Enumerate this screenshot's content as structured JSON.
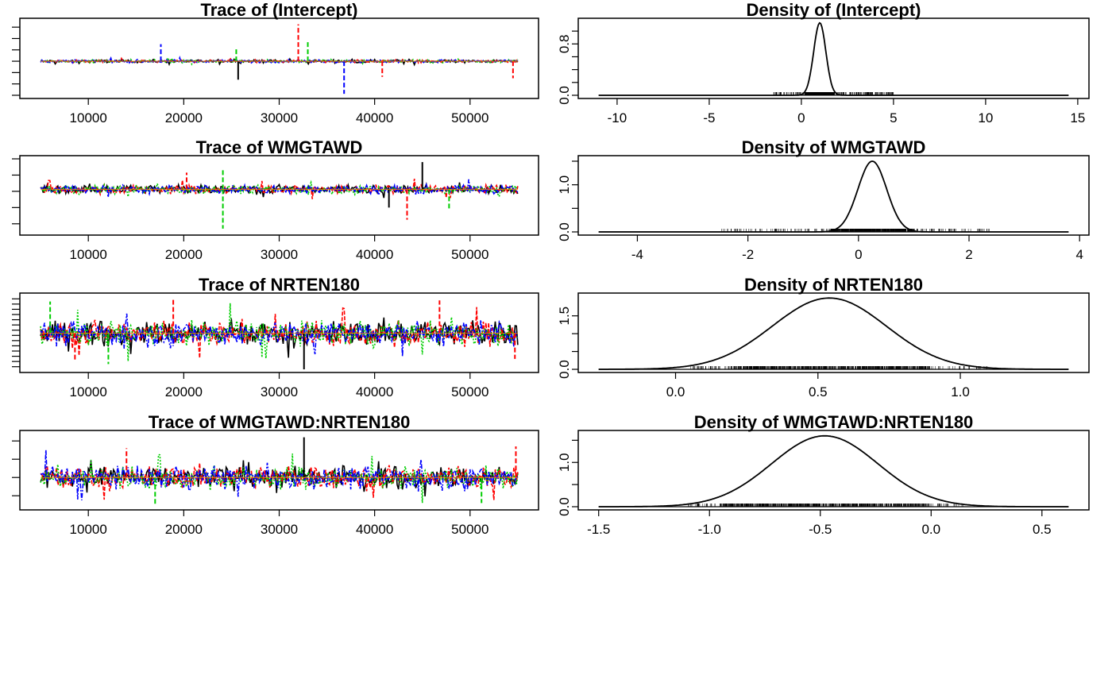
{
  "chart_data": [
    {
      "type": "line",
      "title": "Trace of (Intercept)",
      "xlabel": "",
      "ylabel": "",
      "xlim": [
        5000,
        55000
      ],
      "ylim": [
        -11,
        15
      ],
      "x_ticks": [
        10000,
        20000,
        30000,
        40000,
        50000
      ],
      "y_ticks": [
        -11,
        -7,
        -3,
        1,
        5,
        9,
        13
      ],
      "y_tick_labels_shown": false,
      "series": [
        {
          "color": "#000000",
          "center": 1.0,
          "spread": 0.45
        },
        {
          "color": "#ff0000",
          "center": 1.0,
          "spread": 0.45
        },
        {
          "color": "#00cd00",
          "center": 1.0,
          "spread": 0.45
        },
        {
          "color": "#0000ff",
          "center": 1.0,
          "spread": 0.45
        }
      ],
      "spikes": [
        {
          "x": 32000,
          "y": 14.0,
          "color": "#ff0000"
        },
        {
          "x": 36800,
          "y": -10.5,
          "color": "#0000ff"
        },
        {
          "x": 25700,
          "y": -5.5,
          "color": "#000000"
        },
        {
          "x": 33000,
          "y": 8.0,
          "color": "#00cd00"
        },
        {
          "x": 17600,
          "y": 7.0,
          "color": "#0000ff"
        },
        {
          "x": 54500,
          "y": -5.0,
          "color": "#ff0000"
        },
        {
          "x": 40800,
          "y": -4.5,
          "color": "#ff0000"
        },
        {
          "x": 25500,
          "y": 5.5,
          "color": "#00cd00"
        }
      ],
      "mean_line_color": "#ff8c00"
    },
    {
      "type": "line",
      "title": "Density of (Intercept)",
      "xlabel": "",
      "ylabel": "",
      "xlim": [
        -11,
        14.5
      ],
      "ylim": [
        0,
        1.15
      ],
      "x_ticks": [
        -10,
        -5,
        0,
        5,
        10,
        15
      ],
      "y_ticks": [
        0.0,
        0.2,
        0.4,
        0.6,
        0.8,
        1.0
      ],
      "y_tick_labels": [
        "0.0",
        "",
        "",
        "",
        "0.8",
        ""
      ],
      "curve": {
        "mean": 1.0,
        "sd": 0.33,
        "peak": 1.13
      },
      "rug": {
        "from": -1.5,
        "to": 5.0,
        "dense_from": 0.2,
        "dense_to": 1.8
      }
    },
    {
      "type": "line",
      "title": "Trace of WMGTAWD",
      "xlabel": "",
      "ylabel": "",
      "xlim": [
        5000,
        55000
      ],
      "ylim": [
        -5,
        4
      ],
      "x_ticks": [
        10000,
        20000,
        30000,
        40000,
        50000
      ],
      "y_ticks": [
        -4,
        -2,
        0,
        2,
        4
      ],
      "y_tick_labels_shown": false,
      "series": [
        {
          "color": "#000000",
          "center": 0.25,
          "spread": 0.45
        },
        {
          "color": "#ff0000",
          "center": 0.25,
          "spread": 0.45
        },
        {
          "color": "#00cd00",
          "center": 0.25,
          "spread": 0.45
        },
        {
          "color": "#0000ff",
          "center": 0.25,
          "spread": 0.45
        }
      ],
      "spikes": [
        {
          "x": 24100,
          "y": -4.6,
          "color": "#00cd00"
        },
        {
          "x": 24100,
          "y": 2.6,
          "color": "#00cd00"
        },
        {
          "x": 43400,
          "y": -3.5,
          "color": "#ff0000"
        },
        {
          "x": 45000,
          "y": 3.6,
          "color": "#000000"
        },
        {
          "x": 47800,
          "y": -2.3,
          "color": "#00cd00"
        },
        {
          "x": 41500,
          "y": -2.0,
          "color": "#000000"
        },
        {
          "x": 20300,
          "y": 2.3,
          "color": "#ff0000"
        }
      ],
      "mean_line_color": "#ff8c00"
    },
    {
      "type": "line",
      "title": "Density of WMGTAWD",
      "xlabel": "",
      "ylabel": "",
      "xlim": [
        -4.7,
        3.8
      ],
      "ylim": [
        0,
        1.55
      ],
      "x_ticks": [
        -4,
        -2,
        0,
        2,
        4
      ],
      "y_ticks": [
        0.0,
        0.5,
        1.0,
        1.5
      ],
      "y_tick_labels": [
        "0.0",
        "",
        "1.0",
        ""
      ],
      "curve": {
        "mean": 0.25,
        "sd": 0.26,
        "peak": 1.5
      },
      "rug": {
        "from": -2.5,
        "to": 2.4,
        "dense_from": -0.5,
        "dense_to": 1.0
      }
    },
    {
      "type": "line",
      "title": "Trace of NRTEN180",
      "xlabel": "",
      "ylabel": "",
      "xlim": [
        5000,
        55000
      ],
      "ylim": [
        -0.15,
        1.25
      ],
      "x_ticks": [
        10000,
        20000,
        30000,
        40000,
        50000
      ],
      "y_ticks": [
        -0.1,
        0.0,
        0.1,
        0.2,
        0.3,
        0.4,
        0.5,
        0.6,
        0.7,
        0.8,
        0.9,
        1.0,
        1.1,
        1.2
      ],
      "y_tick_labels_shown": false,
      "series": [
        {
          "color": "#000000",
          "center": 0.54,
          "spread": 0.2
        },
        {
          "color": "#ff0000",
          "center": 0.54,
          "spread": 0.2
        },
        {
          "color": "#00cd00",
          "center": 0.54,
          "spread": 0.2
        },
        {
          "color": "#0000ff",
          "center": 0.54,
          "spread": 0.2
        }
      ],
      "spikes": [
        {
          "x": 18900,
          "y": 1.22,
          "color": "#ff0000"
        },
        {
          "x": 32600,
          "y": -0.15,
          "color": "#000000"
        },
        {
          "x": 12100,
          "y": -0.05,
          "color": "#00cd00"
        },
        {
          "x": 6000,
          "y": 1.15,
          "color": "#00cd00"
        },
        {
          "x": 8600,
          "y": 0.03,
          "color": "#ff0000"
        },
        {
          "x": 54700,
          "y": 0.05,
          "color": "#ff0000"
        },
        {
          "x": 46800,
          "y": 1.17,
          "color": "#ff0000"
        }
      ],
      "mean_line_color": "#ff8c00"
    },
    {
      "type": "line",
      "title": "Density of NRTEN180",
      "xlabel": "",
      "ylabel": "",
      "xlim": [
        -0.27,
        1.38
      ],
      "ylim": [
        0,
        2.05
      ],
      "x_ticks": [
        0.0,
        0.5,
        1.0
      ],
      "x_tick_labels": [
        "0.0",
        "0.5",
        "1.0"
      ],
      "y_ticks": [
        0.0,
        0.5,
        1.0,
        1.5
      ],
      "y_tick_labels": [
        "0.0",
        "",
        "",
        "1.5"
      ],
      "curve": {
        "mean": 0.54,
        "sd": 0.2,
        "peak": 2.0
      },
      "rug": {
        "from": 0.05,
        "to": 1.1,
        "dense_from": 0.2,
        "dense_to": 0.9
      }
    },
    {
      "type": "line",
      "title": "Trace of WMGTAWD:NRTEN180",
      "xlabel": "",
      "ylabel": "",
      "xlim": [
        5000,
        55000
      ],
      "ylim": [
        -1.3,
        0.7
      ],
      "x_ticks": [
        10000,
        20000,
        30000,
        40000,
        50000
      ],
      "y_ticks": [
        -1.0,
        -0.5,
        0.0,
        0.5
      ],
      "y_tick_labels_shown": false,
      "series": [
        {
          "color": "#000000",
          "center": -0.5,
          "spread": 0.26
        },
        {
          "color": "#ff0000",
          "center": -0.5,
          "spread": 0.26
        },
        {
          "color": "#00cd00",
          "center": -0.5,
          "spread": 0.26
        },
        {
          "color": "#0000ff",
          "center": -0.5,
          "spread": 0.26
        }
      ],
      "spikes": [
        {
          "x": 32600,
          "y": 0.6,
          "color": "#000000"
        },
        {
          "x": 17000,
          "y": -1.25,
          "color": "#00cd00"
        },
        {
          "x": 51200,
          "y": -1.2,
          "color": "#00cd00"
        },
        {
          "x": 14000,
          "y": 0.3,
          "color": "#ff0000"
        },
        {
          "x": 54800,
          "y": 0.35,
          "color": "#ff0000"
        }
      ],
      "mean_line_color": "#ff8c00"
    },
    {
      "type": "line",
      "title": "Density of WMGTAWD:NRTEN180",
      "xlabel": "",
      "ylabel": "",
      "xlim": [
        -1.5,
        0.62
      ],
      "ylim": [
        0,
        1.65
      ],
      "x_ticks": [
        -1.5,
        -1.0,
        -0.5,
        0.0,
        0.5
      ],
      "x_tick_labels": [
        "-1.5",
        "-1.0",
        "-0.5",
        "0.0",
        "0.5"
      ],
      "y_ticks": [
        0.0,
        0.5,
        1.0,
        1.5
      ],
      "y_tick_labels": [
        "0.0",
        "",
        "1.0",
        ""
      ],
      "curve": {
        "mean": -0.48,
        "sd": 0.24,
        "peak": 1.6
      },
      "rug": {
        "from": -1.1,
        "to": 0.15,
        "dense_from": -0.95,
        "dense_to": 0.0
      }
    }
  ]
}
